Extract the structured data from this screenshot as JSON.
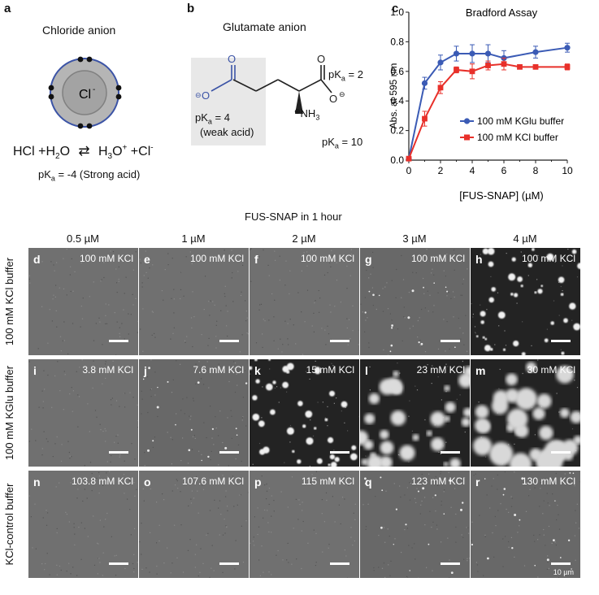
{
  "panel_a": {
    "letter": "a",
    "title": "Chloride anion",
    "ion": "Cl",
    "ion_charge": "-",
    "eq": {
      "lhs": "HCl +H",
      "lhs_sub": "2",
      "lhs_end": "O",
      "rhs": "H",
      "rhs_sub": "3",
      "rhs_sup": "O",
      "rhs_sup2": "+",
      "rhs_end": " +Cl",
      "rhs_end_sup": "-"
    },
    "pka_prefix": "pK",
    "pka_sub": "a",
    "pka_value": " = -4 (Strong acid)"
  },
  "panel_b": {
    "letter": "b",
    "title": "Glutamate anion",
    "pka_prefix": "pK",
    "pka_sub": "a",
    "pka1": " = 2",
    "pka2": " = 4",
    "pka2_note": "(weak acid)",
    "pka3": " = 10",
    "nh3": "NH",
    "nh3_sub": "3",
    "o": "O",
    "minus": "⊖",
    "plus": "⊕"
  },
  "panel_c": {
    "letter": "c"
  },
  "chart_data": {
    "type": "line",
    "title": "Bradford Assay",
    "xlabel": "[FUS-SNAP] (µM)",
    "ylabel": "Abs. at 595 nm",
    "xlim": [
      0,
      10
    ],
    "ylim": [
      0.0,
      1.0
    ],
    "xticks": [
      "0",
      "2",
      "4",
      "6",
      "8",
      "10"
    ],
    "yticks": [
      "0.0",
      "0.2",
      "0.4",
      "0.6",
      "0.8",
      "1.0"
    ],
    "legend_position": "right",
    "series": [
      {
        "name": "100 mM KGlu buffer",
        "color": "#3b5bb5",
        "marker": "circle",
        "x": [
          0,
          1,
          2,
          3,
          4,
          5,
          6,
          8,
          10
        ],
        "y": [
          0.01,
          0.52,
          0.66,
          0.72,
          0.72,
          0.72,
          0.69,
          0.73,
          0.76
        ],
        "err": [
          0.01,
          0.04,
          0.05,
          0.05,
          0.06,
          0.06,
          0.05,
          0.04,
          0.03
        ]
      },
      {
        "name": "100 mM KCl buffer",
        "color": "#e8302a",
        "marker": "square",
        "x": [
          0,
          1,
          2,
          3,
          4,
          5,
          6,
          7,
          8,
          10
        ],
        "y": [
          0.01,
          0.28,
          0.49,
          0.61,
          0.6,
          0.64,
          0.65,
          0.63,
          0.63,
          0.63
        ],
        "err": [
          0.01,
          0.05,
          0.04,
          0.02,
          0.05,
          0.03,
          0.04,
          0.01,
          0.01,
          0.02
        ]
      }
    ]
  },
  "grid": {
    "header": "FUS-SNAP in 1 hour",
    "columns": [
      "0.5 µM",
      "1 µM",
      "2 µM",
      "3 µM",
      "4 µM"
    ],
    "rows": [
      {
        "label": "100 mM KCl buffer",
        "tiles": [
          {
            "letter": "d",
            "kcl": "100 mM KCl",
            "level": 0
          },
          {
            "letter": "e",
            "kcl": "100 mM KCl",
            "level": 0
          },
          {
            "letter": "f",
            "kcl": "100 mM KCl",
            "level": 0
          },
          {
            "letter": "g",
            "kcl": "100 mM KCl",
            "level": 1
          },
          {
            "letter": "h",
            "kcl": "100 mM KCl",
            "level": 3
          }
        ]
      },
      {
        "label": "100 mM KGlu buffer",
        "tiles": [
          {
            "letter": "i",
            "kcl": "3.8 mM KCl",
            "level": 0
          },
          {
            "letter": "j",
            "kcl": "7.6 mM KCl",
            "level": 1
          },
          {
            "letter": "k",
            "kcl": "15 mM KCl",
            "level": 3
          },
          {
            "letter": "l",
            "kcl": "23 mM KCl",
            "level": 4
          },
          {
            "letter": "m",
            "kcl": "30 mM KCl",
            "level": 5
          }
        ]
      },
      {
        "label": "KCl-control buffer",
        "tiles": [
          {
            "letter": "n",
            "kcl": "103.8 mM KCl",
            "level": 0
          },
          {
            "letter": "o",
            "kcl": "107.6 mM KCl",
            "level": 0
          },
          {
            "letter": "p",
            "kcl": "115 mM KCl",
            "level": 0
          },
          {
            "letter": "q",
            "kcl": "123 mM KCl",
            "level": 1
          },
          {
            "letter": "r",
            "kcl": "130 mM KCl",
            "level": 1,
            "scalebar_text": "10 µm"
          }
        ]
      }
    ]
  }
}
